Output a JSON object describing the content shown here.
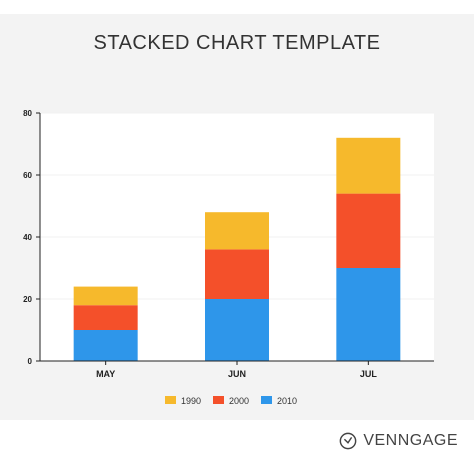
{
  "header": {
    "title": "STACKED CHART TEMPLATE"
  },
  "brand": {
    "name": "VENNGAGE",
    "icon": "venngage-logo-icon"
  },
  "chart_data": {
    "type": "bar",
    "stacked": true,
    "categories": [
      "MAY",
      "JUN",
      "JUL"
    ],
    "series": [
      {
        "name": "2010",
        "color": "#2e96ea",
        "values": [
          10,
          20,
          30
        ]
      },
      {
        "name": "2000",
        "color": "#f4502a",
        "values": [
          8,
          16,
          24
        ]
      },
      {
        "name": "1990",
        "color": "#f6b92c",
        "values": [
          6,
          12,
          18
        ]
      }
    ],
    "legend_order": [
      "1990",
      "2000",
      "2010"
    ],
    "title": "STACKED CHART TEMPLATE",
    "xlabel": "",
    "ylabel": "",
    "ylim": [
      0,
      80
    ],
    "yticks": [
      0,
      20,
      40,
      60,
      80
    ],
    "grid": true,
    "legend_position": "bottom"
  }
}
